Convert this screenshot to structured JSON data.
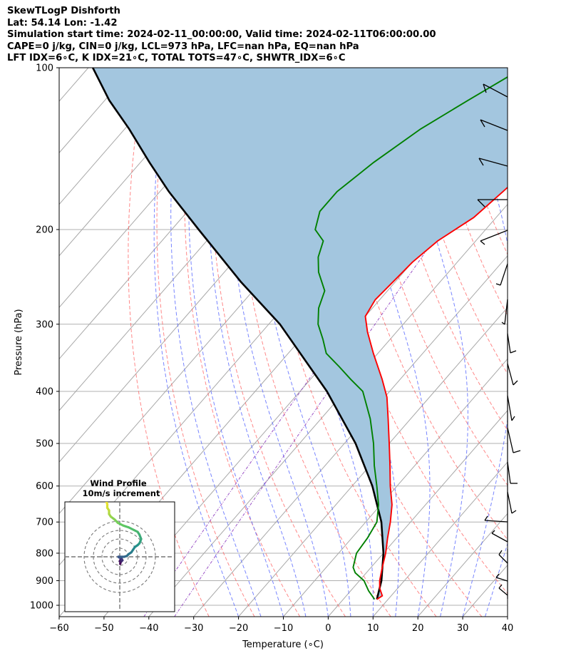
{
  "header": {
    "line1": "SkewTLogP Dishforth",
    "line2": "Lat: 54.14   Lon: -1.42",
    "line3": "Simulation start time: 2024-02-11_00:00:00, Valid time: 2024-02-11T06:00:00.00",
    "line4": "CAPE=0 j/kg, CIN=0 j/kg, LCL=973 hPa, LFC=nan hPa, EQ=nan hPa",
    "line5": "LFT IDX=6∘C, K IDX=21∘C, TOTAL TOTS=47∘C, SHWTR_IDX=6∘C"
  },
  "chart_data": {
    "type": "line",
    "xlabel": "Temperature (∘C)",
    "ylabel": "Pressure (hPa)",
    "xlim": [
      -60,
      40
    ],
    "ylim": [
      1050,
      100
    ],
    "y_scale": "log",
    "skew": true,
    "xticks": [
      "−60",
      "−50",
      "−40",
      "−30",
      "−20",
      "−10",
      "0",
      "10",
      "20",
      "30",
      "40"
    ],
    "yticks": [
      "100",
      "200",
      "300",
      "400",
      "500",
      "600",
      "700",
      "800",
      "900",
      "1000"
    ],
    "grid": true,
    "colors": {
      "temperature": "#ff0000",
      "dewpoint": "#008000",
      "parcel": "#000000",
      "fill": "#a3c6df",
      "dry_adiabat": "#ff6060",
      "moist_adiabat": "#6070ff",
      "mixing_ratio": "#9040c0"
    },
    "series": [
      {
        "role": "temperature",
        "p": [
          975,
          960,
          930,
          900,
          850,
          800,
          750,
          700,
          650,
          600,
          550,
          500,
          450,
          410,
          380,
          340,
          310,
          290,
          270,
          250,
          230,
          210,
          190,
          170,
          150,
          130,
          115,
          100
        ],
        "t": [
          7.5,
          8.0,
          6.0,
          4.5,
          2.5,
          0.5,
          -2.0,
          -4.5,
          -7.5,
          -11.5,
          -15.5,
          -20.0,
          -25.0,
          -29.5,
          -34.0,
          -41.0,
          -46.5,
          -50.0,
          -51.0,
          -50.5,
          -50.0,
          -48.5,
          -45.0,
          -43.5,
          -42.0,
          -43.0,
          -45.0,
          -48.0
        ]
      },
      {
        "role": "dewpoint",
        "p": [
          975,
          940,
          900,
          870,
          850,
          800,
          750,
          700,
          650,
          600,
          550,
          500,
          450,
          400,
          380,
          360,
          340,
          320,
          300,
          280,
          260,
          240,
          225,
          210,
          200,
          185,
          170,
          150,
          130,
          115,
          100
        ],
        "t": [
          7.0,
          4.0,
          1.0,
          -2.5,
          -4.0,
          -6.0,
          -6.5,
          -7.5,
          -10.5,
          -14.5,
          -19.0,
          -23.5,
          -29.0,
          -36.0,
          -41.0,
          -46.0,
          -51.5,
          -55.0,
          -59.0,
          -62.0,
          -64.0,
          -69.0,
          -72.0,
          -74.0,
          -78.0,
          -80.5,
          -80.5,
          -78.0,
          -74.0,
          -69.0,
          -63.0
        ]
      },
      {
        "role": "parcel",
        "p": [
          975,
          900,
          800,
          700,
          600,
          500,
          400,
          300,
          250,
          200,
          170,
          150,
          130,
          115,
          100
        ],
        "t": [
          7.5,
          4.9,
          0.0,
          -6.5,
          -15.5,
          -27.5,
          -44.0,
          -67.5,
          -84.5,
          -104.0,
          -118.0,
          -128.0,
          -139.0,
          -149.0,
          -159.0
        ]
      }
    ],
    "wind_barbs_present": true,
    "inset": {
      "title": "Wind Profile",
      "subtitle": "10m/s increment",
      "type": "hodograph",
      "u_ms": [
        0.5,
        1.0,
        0.0,
        1.0,
        2.0,
        3.0,
        2.0,
        0.0,
        -1.0,
        -1.5,
        1.0,
        5.0,
        8.0,
        10.0,
        13.0,
        15.0,
        17.0,
        20.0,
        22.0,
        23.0,
        24.0,
        22.0,
        20.0,
        16.0,
        10.0,
        4.0,
        -2.0,
        -6.0,
        -10.0,
        -12.0,
        -12.0,
        -14.0,
        -14.0,
        -15.0
      ],
      "v_ms": [
        -8.0,
        -6.0,
        -5.0,
        -3.0,
        -5.0,
        -4.0,
        -2.0,
        -1.0,
        -0.5,
        0.0,
        0.0,
        0.0,
        1.0,
        3.0,
        5.0,
        8.0,
        11.0,
        13.0,
        15.0,
        17.0,
        20.0,
        25.0,
        28.0,
        30.0,
        33.0,
        35.0,
        38.0,
        42.0,
        45.0,
        48.0,
        52.0,
        55.0,
        59.0,
        62.0
      ]
    }
  }
}
